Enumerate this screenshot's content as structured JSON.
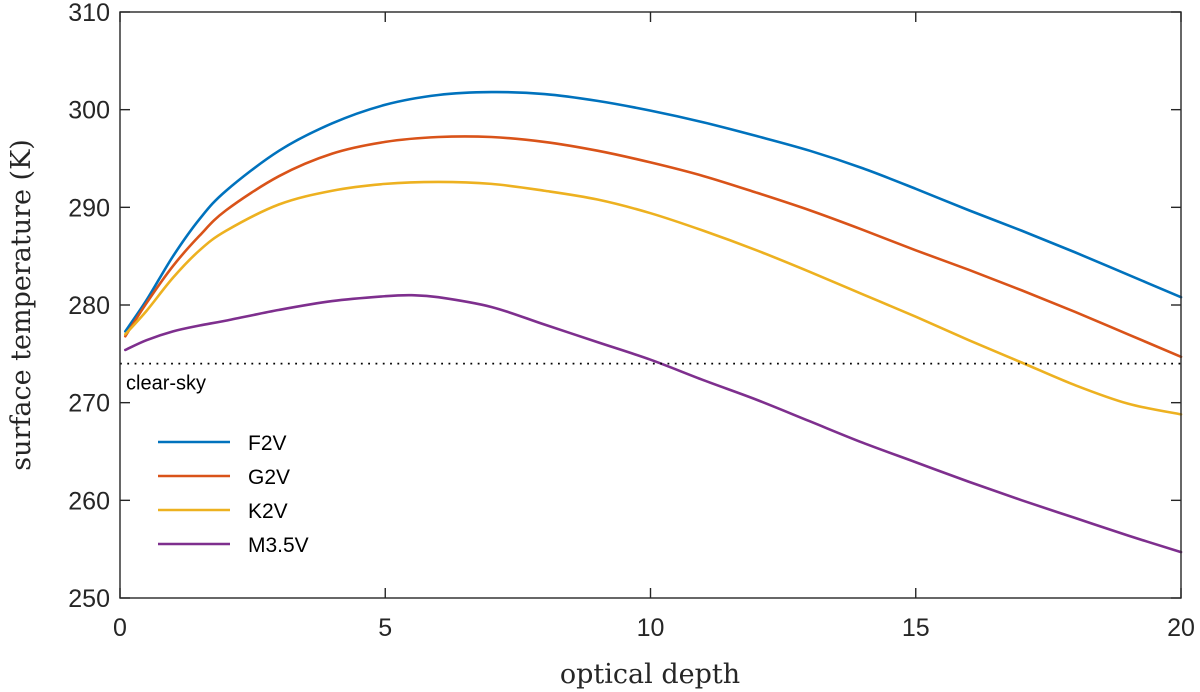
{
  "chart_data": {
    "type": "line",
    "xlabel": "optical depth",
    "ylabel": "surface temperature (K)",
    "xlim": [
      0,
      20
    ],
    "ylim": [
      250,
      310
    ],
    "xticks": [
      "0",
      "5",
      "10",
      "15",
      "20"
    ],
    "yticks": [
      "250",
      "260",
      "270",
      "280",
      "290",
      "300",
      "310"
    ],
    "legend_position": "bottom-left",
    "grid": false,
    "series": [
      {
        "name": "F2V",
        "color": "#0072BD",
        "x": [
          0.1,
          0.5,
          1,
          1.5,
          2,
          3,
          4,
          5,
          6,
          7,
          8,
          9,
          10,
          11,
          12,
          13,
          14,
          15,
          16,
          17,
          18,
          19,
          20
        ],
        "y": [
          277.3,
          280.5,
          285.0,
          288.8,
          291.7,
          295.8,
          298.6,
          300.5,
          301.5,
          301.8,
          301.6,
          300.9,
          299.9,
          298.7,
          297.3,
          295.8,
          294.0,
          291.9,
          289.7,
          287.6,
          285.4,
          283.1,
          280.8
        ]
      },
      {
        "name": "G2V",
        "color": "#D95319",
        "x": [
          0.1,
          0.5,
          1,
          1.5,
          2,
          3,
          4,
          5,
          6,
          7,
          8,
          9,
          10,
          11,
          12,
          13,
          14,
          15,
          16,
          17,
          18,
          19,
          20
        ],
        "y": [
          276.8,
          280.2,
          284.0,
          287.1,
          289.7,
          293.2,
          295.5,
          296.7,
          297.2,
          297.2,
          296.7,
          295.8,
          294.6,
          293.2,
          291.5,
          289.7,
          287.7,
          285.6,
          283.6,
          281.5,
          279.3,
          277.0,
          274.7
        ]
      },
      {
        "name": "K2V",
        "color": "#EDB120",
        "x": [
          0.1,
          0.5,
          1,
          1.5,
          2,
          3,
          4,
          5,
          6,
          7,
          8,
          9,
          10,
          11,
          12,
          13,
          14,
          15,
          16,
          17,
          18,
          19,
          20
        ],
        "y": [
          277.0,
          279.4,
          282.8,
          285.6,
          287.6,
          290.3,
          291.7,
          292.4,
          292.6,
          292.4,
          291.7,
          290.8,
          289.4,
          287.6,
          285.6,
          283.4,
          281.1,
          278.8,
          276.4,
          274.1,
          271.8,
          269.9,
          268.8
        ]
      },
      {
        "name": "M3.5V",
        "color": "#7E2F8E",
        "x": [
          0.1,
          0.5,
          1,
          1.5,
          2,
          3,
          4,
          5,
          5.5,
          6,
          7,
          8,
          9,
          10,
          11,
          12,
          13,
          14,
          15,
          16,
          17,
          18,
          19,
          20
        ],
        "y": [
          275.4,
          276.4,
          277.3,
          277.9,
          278.4,
          279.5,
          280.4,
          280.9,
          281.0,
          280.8,
          279.8,
          278.0,
          276.2,
          274.4,
          272.3,
          270.3,
          268.1,
          265.9,
          263.9,
          261.9,
          260.0,
          258.2,
          256.4,
          254.7
        ]
      }
    ],
    "reference_line": {
      "y": 274,
      "label": "clear-sky",
      "style": "dotted",
      "color": "#000000"
    }
  }
}
